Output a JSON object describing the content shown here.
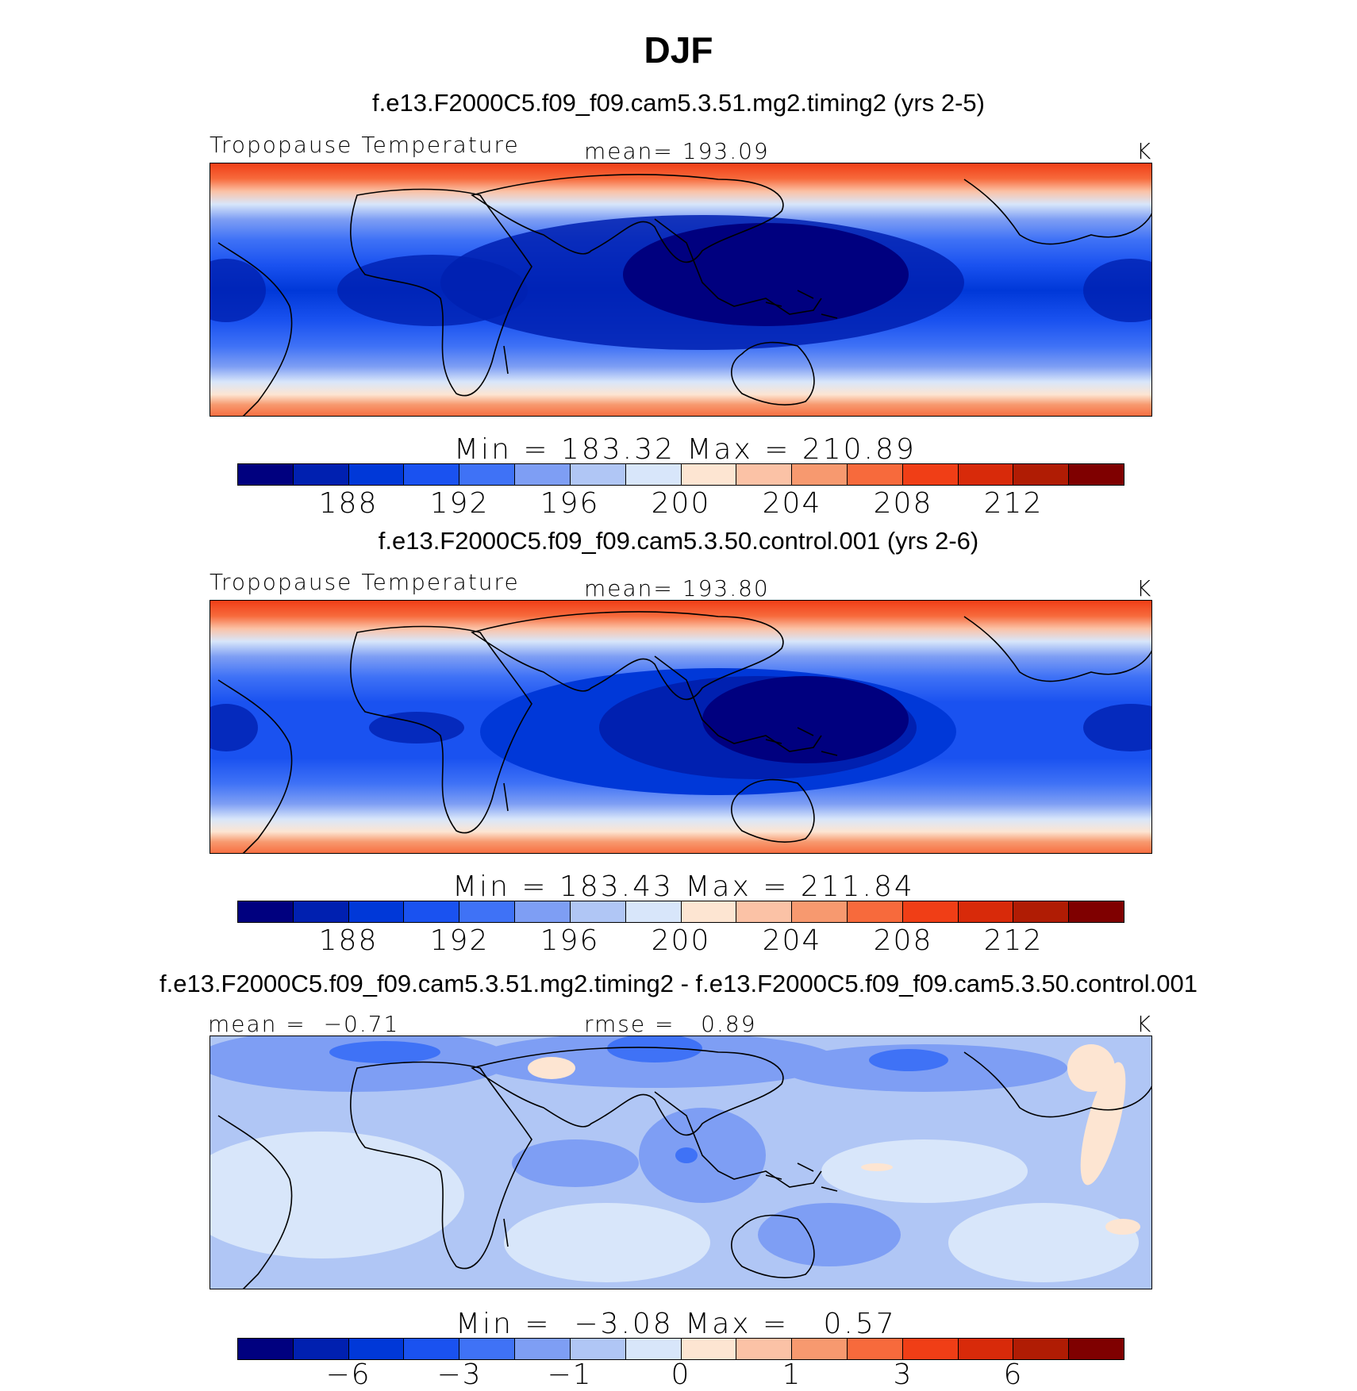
{
  "title": "DJF",
  "colorbar_colors": [
    "#00007f",
    "#0020b0",
    "#0038d8",
    "#1a52f0",
    "#3f72f6",
    "#7e9ef4",
    "#b0c6f5",
    "#d8e6fa",
    "#fde5d2",
    "#fbc2a6",
    "#f7996f",
    "#f76a3c",
    "#f03e16",
    "#d82a0a",
    "#b01c04",
    "#7f0000"
  ],
  "chart_data": [
    {
      "type": "heatmap",
      "title": "f.e13.F2000C5.f09_f09.cam5.3.51.mg2.timing2 (yrs 2-5)",
      "variable": "Tropopause Temperature",
      "stat_label": "mean= 193.09",
      "units": "K",
      "min_max": "Min = 183.32 Max = 210.89",
      "min": 183.32,
      "max": 210.89,
      "mean": 193.09,
      "colorbar_ticks": [
        "188",
        "192",
        "196",
        "200",
        "204",
        "208",
        "212"
      ],
      "colorbar_levels": [
        186,
        188,
        190,
        192,
        194,
        196,
        198,
        200,
        202,
        204,
        206,
        208,
        210,
        212,
        214
      ]
    },
    {
      "type": "heatmap",
      "title": "f.e13.F2000C5.f09_f09.cam5.3.50.control.001 (yrs 2-6)",
      "variable": "Tropopause Temperature",
      "stat_label": "mean= 193.80",
      "units": "K",
      "min_max": "Min = 183.43 Max = 211.84",
      "min": 183.43,
      "max": 211.84,
      "mean": 193.8,
      "colorbar_ticks": [
        "188",
        "192",
        "196",
        "200",
        "204",
        "208",
        "212"
      ],
      "colorbar_levels": [
        186,
        188,
        190,
        192,
        194,
        196,
        198,
        200,
        202,
        204,
        206,
        208,
        210,
        212,
        214
      ]
    },
    {
      "type": "heatmap",
      "title": "f.e13.F2000C5.f09_f09.cam5.3.51.mg2.timing2 - f.e13.F2000C5.f09_f09.cam5.3.50.control.001",
      "variable_stat": "mean =  −0.71",
      "stat_label": "rmse =   0.89",
      "units": "K",
      "min_max": "Min =  −3.08 Max =   0.57",
      "min": -3.08,
      "max": 0.57,
      "mean": -0.71,
      "rmse": 0.89,
      "colorbar_ticks": [
        "−6",
        "−3",
        "−1",
        "0",
        "1",
        "3",
        "6"
      ],
      "colorbar_levels": [
        -8,
        -6,
        -4,
        -3,
        -2,
        -1,
        -0.5,
        0,
        0.5,
        1,
        2,
        3,
        4,
        6,
        8
      ]
    }
  ]
}
